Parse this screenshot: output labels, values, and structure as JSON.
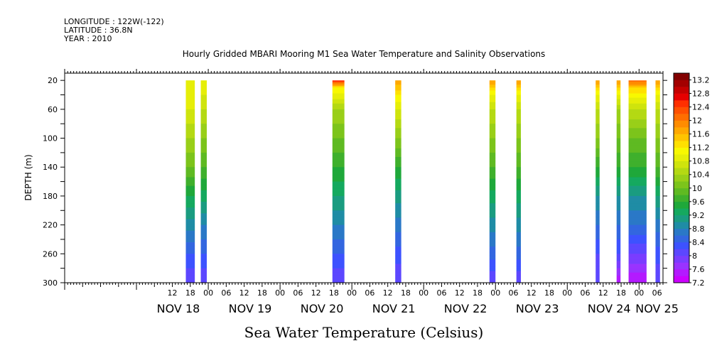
{
  "header": {
    "longitude": "LONGITUDE : 122W(-122)",
    "latitude": "LATITUDE : 36.8N",
    "year": "YEAR : 2010"
  },
  "chart_data": {
    "type": "heatmap",
    "title": "Hourly Gridded MBARI Mooring M1 Sea Water Temperature and Salinity Observations",
    "xlabel": "Sea Water Temperature (Celsius)",
    "ylabel": "DEPTH (m)",
    "x_unit": "hours since NOV 17 00:00, 2010",
    "xlim": [
      0,
      200
    ],
    "ylim": [
      300,
      10
    ],
    "y_ticks": [
      20,
      60,
      100,
      140,
      180,
      220,
      260,
      300
    ],
    "x_hour_ticks": [
      {
        "h": 36,
        "label": "12"
      },
      {
        "h": 42,
        "label": "18"
      },
      {
        "h": 48,
        "label": "00"
      },
      {
        "h": 54,
        "label": "06"
      },
      {
        "h": 60,
        "label": "12"
      },
      {
        "h": 66,
        "label": "18"
      },
      {
        "h": 72,
        "label": "00"
      },
      {
        "h": 78,
        "label": "06"
      },
      {
        "h": 84,
        "label": "12"
      },
      {
        "h": 90,
        "label": "18"
      },
      {
        "h": 96,
        "label": "00"
      },
      {
        "h": 102,
        "label": "06"
      },
      {
        "h": 108,
        "label": "12"
      },
      {
        "h": 114,
        "label": "18"
      },
      {
        "h": 120,
        "label": "00"
      },
      {
        "h": 126,
        "label": "06"
      },
      {
        "h": 132,
        "label": "12"
      },
      {
        "h": 138,
        "label": "18"
      },
      {
        "h": 144,
        "label": "00"
      },
      {
        "h": 150,
        "label": "06"
      },
      {
        "h": 156,
        "label": "12"
      },
      {
        "h": 162,
        "label": "18"
      },
      {
        "h": 168,
        "label": "00"
      },
      {
        "h": 174,
        "label": "06"
      },
      {
        "h": 180,
        "label": "12"
      },
      {
        "h": 186,
        "label": "18"
      },
      {
        "h": 192,
        "label": "00"
      },
      {
        "h": 198,
        "label": "06"
      }
    ],
    "x_day_labels": [
      {
        "h": 38,
        "label": "NOV 18"
      },
      {
        "h": 62,
        "label": "NOV 19"
      },
      {
        "h": 86,
        "label": "NOV 20"
      },
      {
        "h": 110,
        "label": "NOV 21"
      },
      {
        "h": 134,
        "label": "NOV 22"
      },
      {
        "h": 158,
        "label": "NOV 23"
      },
      {
        "h": 182,
        "label": "NOV 24"
      },
      {
        "h": 198,
        "label": "NOV 25"
      }
    ],
    "colorbar": {
      "min": 7.2,
      "max": 13.4,
      "step": 0.2,
      "labels": [
        "13.2",
        "12.8",
        "12.4",
        "12",
        "11.6",
        "11.2",
        "10.8",
        "10.4",
        "10",
        "9.6",
        "9.2",
        "8.8",
        "8.4",
        "8",
        "7.6",
        "7.2"
      ],
      "colors": [
        "#cc00ff",
        "#b31aff",
        "#9933ff",
        "#7a3dff",
        "#5c47ff",
        "#3d52ff",
        "#3366e0",
        "#2a78c7",
        "#1f8ca5",
        "#1a9c80",
        "#15a95f",
        "#1fa83a",
        "#3fb02c",
        "#5fba22",
        "#7cc41b",
        "#99cf18",
        "#b4d913",
        "#cfe40d",
        "#e6ee08",
        "#f8f800",
        "#ffe000",
        "#ffc400",
        "#ffa800",
        "#ff8c00",
        "#ff6e00",
        "#ff5000",
        "#ff2f00",
        "#e60000",
        "#c40000",
        "#a30000",
        "#820000"
      ]
    },
    "series": [
      {
        "start_h": 40.5,
        "end_h": 43.5,
        "profile": [
          [
            20,
            11.0
          ],
          [
            60,
            10.8
          ],
          [
            100,
            10.4
          ],
          [
            140,
            10.0
          ],
          [
            180,
            9.4
          ],
          [
            220,
            8.9
          ],
          [
            260,
            8.4
          ],
          [
            300,
            8.0
          ]
        ]
      },
      {
        "start_h": 45.5,
        "end_h": 47.5,
        "profile": [
          [
            20,
            11.0
          ],
          [
            60,
            10.6
          ],
          [
            100,
            10.2
          ],
          [
            140,
            9.8
          ],
          [
            180,
            9.3
          ],
          [
            220,
            8.8
          ],
          [
            260,
            8.4
          ],
          [
            300,
            8.0
          ]
        ]
      },
      {
        "start_h": 89.5,
        "end_h": 93.5,
        "profile": [
          [
            20,
            12.6
          ],
          [
            30,
            11.2
          ],
          [
            60,
            10.4
          ],
          [
            100,
            10.0
          ],
          [
            140,
            9.6
          ],
          [
            180,
            9.2
          ],
          [
            220,
            8.8
          ],
          [
            260,
            8.4
          ],
          [
            300,
            8.0
          ]
        ]
      },
      {
        "start_h": 110.5,
        "end_h": 112.5,
        "profile": [
          [
            20,
            11.8
          ],
          [
            40,
            11.2
          ],
          [
            60,
            10.8
          ],
          [
            100,
            10.2
          ],
          [
            140,
            9.6
          ],
          [
            180,
            9.1
          ],
          [
            220,
            8.7
          ],
          [
            260,
            8.3
          ],
          [
            300,
            8.0
          ]
        ]
      },
      {
        "start_h": 142.0,
        "end_h": 144.0,
        "profile": [
          [
            20,
            11.8
          ],
          [
            40,
            11.0
          ],
          [
            60,
            10.6
          ],
          [
            100,
            10.2
          ],
          [
            140,
            9.8
          ],
          [
            180,
            9.3
          ],
          [
            220,
            8.9
          ],
          [
            260,
            8.5
          ],
          [
            300,
            8.0
          ]
        ]
      },
      {
        "start_h": 151.0,
        "end_h": 152.5,
        "profile": [
          [
            20,
            11.8
          ],
          [
            40,
            11.0
          ],
          [
            60,
            10.6
          ],
          [
            100,
            10.2
          ],
          [
            140,
            9.8
          ],
          [
            180,
            9.3
          ],
          [
            220,
            8.9
          ],
          [
            260,
            8.5
          ],
          [
            300,
            8.0
          ]
        ]
      },
      {
        "start_h": 177.5,
        "end_h": 178.8,
        "profile": [
          [
            20,
            11.8
          ],
          [
            40,
            11.0
          ],
          [
            60,
            10.6
          ],
          [
            100,
            10.2
          ],
          [
            140,
            9.6
          ],
          [
            180,
            9.0
          ],
          [
            220,
            8.6
          ],
          [
            260,
            8.2
          ],
          [
            300,
            8.0
          ]
        ]
      },
      {
        "start_h": 184.5,
        "end_h": 185.8,
        "profile": [
          [
            20,
            11.8
          ],
          [
            40,
            11.0
          ],
          [
            60,
            10.4
          ],
          [
            100,
            10.0
          ],
          [
            140,
            9.6
          ],
          [
            180,
            9.0
          ],
          [
            220,
            8.6
          ],
          [
            260,
            8.2
          ],
          [
            300,
            7.4
          ]
        ]
      },
      {
        "start_h": 188.5,
        "end_h": 194.5,
        "profile": [
          [
            20,
            12.2
          ],
          [
            30,
            11.4
          ],
          [
            60,
            10.6
          ],
          [
            100,
            10.0
          ],
          [
            140,
            9.6
          ],
          [
            180,
            9.0
          ],
          [
            220,
            8.6
          ],
          [
            260,
            8.0
          ],
          [
            300,
            7.4
          ]
        ]
      },
      {
        "start_h": 197.5,
        "end_h": 199.0,
        "profile": [
          [
            20,
            11.8
          ],
          [
            40,
            11.0
          ],
          [
            60,
            10.6
          ],
          [
            100,
            10.2
          ],
          [
            140,
            9.8
          ],
          [
            180,
            9.2
          ],
          [
            220,
            8.7
          ],
          [
            260,
            8.3
          ],
          [
            300,
            8.0
          ]
        ]
      }
    ]
  }
}
